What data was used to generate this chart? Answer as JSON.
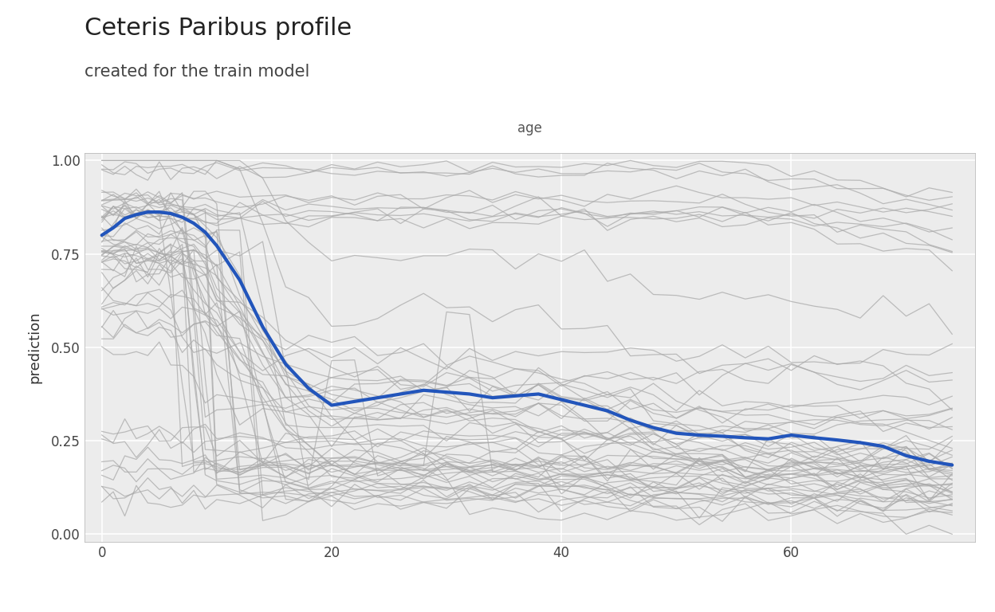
{
  "title": "Ceteris Paribus profile",
  "subtitle": "created for the train model",
  "xlabel": "age",
  "ylabel": "prediction",
  "ylim": [
    -0.02,
    1.02
  ],
  "xlim": [
    -1.5,
    76
  ],
  "yticks": [
    0.0,
    0.25,
    0.5,
    0.75,
    1.0
  ],
  "xticks": [
    0,
    20,
    40,
    60
  ],
  "panel_bg": "#ececec",
  "grid_color": "#ffffff",
  "cp_color": "#aaaaaa",
  "cp_alpha": 0.75,
  "cp_lw": 0.9,
  "pdp_color": "#2255bb",
  "pdp_lw": 3.0,
  "n_cp_lines": 60,
  "seed": 7,
  "age_points": [
    0,
    1,
    2,
    3,
    4,
    5,
    6,
    7,
    8,
    9,
    10,
    12,
    14,
    16,
    18,
    20,
    22,
    24,
    26,
    28,
    30,
    32,
    34,
    36,
    38,
    40,
    42,
    44,
    46,
    48,
    50,
    52,
    54,
    56,
    58,
    60,
    62,
    64,
    66,
    68,
    70,
    72,
    74
  ],
  "pdp_values": [
    0.8,
    0.82,
    0.845,
    0.855,
    0.862,
    0.862,
    0.858,
    0.848,
    0.832,
    0.808,
    0.772,
    0.68,
    0.555,
    0.455,
    0.39,
    0.345,
    0.355,
    0.365,
    0.375,
    0.385,
    0.38,
    0.375,
    0.365,
    0.37,
    0.375,
    0.36,
    0.345,
    0.33,
    0.305,
    0.285,
    0.27,
    0.265,
    0.262,
    0.258,
    0.255,
    0.265,
    0.258,
    0.252,
    0.245,
    0.235,
    0.21,
    0.195,
    0.185
  ]
}
